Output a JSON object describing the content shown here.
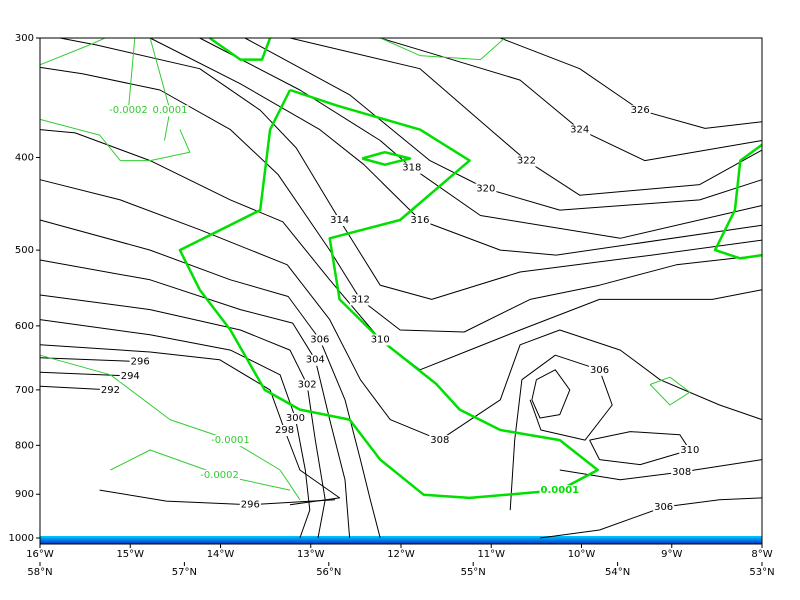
{
  "chart_data": {
    "type": "contour",
    "y_scale": "log",
    "xlim": [
      -16,
      -8
    ],
    "ylim": [
      1000,
      300
    ],
    "x2lim": [
      58,
      53
    ],
    "xticks": [
      {
        "value": -16,
        "label": "16°W"
      },
      {
        "value": -15,
        "label": "15°W"
      },
      {
        "value": -14,
        "label": "14°W"
      },
      {
        "value": -13,
        "label": "13°W"
      },
      {
        "value": -12,
        "label": "12°W"
      },
      {
        "value": -11,
        "label": "11°W"
      },
      {
        "value": -10,
        "label": "10°W"
      },
      {
        "value": -9,
        "label": "9°W"
      },
      {
        "value": -8,
        "label": "8°W"
      }
    ],
    "x2ticks": [
      {
        "value": 58,
        "label": "58°N"
      },
      {
        "value": 57,
        "label": "57°N"
      },
      {
        "value": 56,
        "label": "56°N"
      },
      {
        "value": 55,
        "label": "55°N"
      },
      {
        "value": 54,
        "label": "54°N"
      },
      {
        "value": 53,
        "label": "53°N"
      }
    ],
    "yticks": [
      300,
      400,
      500,
      600,
      700,
      800,
      900,
      1000
    ],
    "series": [
      {
        "level": 314,
        "color": "#000000",
        "width": 1,
        "x": [
          -15.78,
          -15.38,
          -14.23,
          -13.56,
          -13.16,
          -12.68,
          -12.23,
          -11.66,
          -10.68,
          -9.22,
          -8
        ],
        "y": [
          300,
          305,
          323,
          357,
          391,
          465,
          544,
          563,
          527,
          506,
          488
        ]
      },
      {
        "level": 316,
        "color": "#000000",
        "width": 1,
        "x": [
          -14.78,
          -13.78,
          -12.9,
          -12.41,
          -11.79,
          -10.9,
          -10.28,
          -8
        ],
        "y": [
          300,
          335,
          374,
          407,
          465,
          500,
          506,
          471
        ]
      },
      {
        "level": 318,
        "color": "#000000",
        "width": 1,
        "x": [
          -14.23,
          -13.12,
          -12.23,
          -11.88,
          -11.12,
          -9.57,
          -8
        ],
        "y": [
          300,
          340,
          384,
          410,
          460,
          486,
          449
        ]
      },
      {
        "level": 320,
        "color": "#000000",
        "width": 1,
        "x": [
          -13.73,
          -12.57,
          -11.68,
          -11.06,
          -10.24,
          -8.69,
          -8
        ],
        "y": [
          300,
          344,
          403,
          431,
          454,
          443,
          422
        ]
      },
      {
        "level": 322,
        "color": "#000000",
        "width": 1,
        "x": [
          -13.23,
          -11.79,
          -11.01,
          -10.61,
          -10.02,
          -8.69,
          -8
        ],
        "y": [
          300,
          323,
          374,
          403,
          438,
          427,
          393
        ]
      },
      {
        "level": 324,
        "color": "#000000",
        "width": 1,
        "x": [
          -12.23,
          -11.48,
          -10.68,
          -10.02,
          -9.3,
          -8
        ],
        "y": [
          300,
          315,
          332,
          374,
          403,
          384
        ]
      },
      {
        "level": 326,
        "color": "#000000",
        "width": 1,
        "x": [
          -10.9,
          -10.02,
          -9.35,
          -8.63,
          -8
        ],
        "y": [
          300,
          323,
          357,
          373,
          367
        ]
      },
      {
        "level": 312,
        "color": "#000000",
        "width": 1,
        "x": [
          -16,
          -15.53,
          -14.67,
          -13.89,
          -13.36,
          -12.79,
          -12.45,
          -12.01,
          -11.3,
          -10.57,
          -9.8,
          -8.95,
          -8
        ],
        "y": [
          322,
          327,
          340,
          374,
          417,
          500,
          563,
          606,
          609,
          563,
          544,
          518,
          506
        ]
      },
      {
        "level": 310,
        "color": "#000000",
        "width": 1,
        "x": [
          -16,
          -15.61,
          -14.78,
          -13.89,
          -13.31,
          -12.79,
          -12.23,
          -11.79,
          -11.24,
          -10.68,
          -9.8,
          -8.55,
          -8
        ],
        "y": [
          374,
          377,
          403,
          443,
          467,
          537,
          620,
          667,
          636,
          606,
          563,
          563,
          550
        ]
      },
      {
        "level": 308,
        "color": "#000000",
        "width": 1,
        "x": [
          -16,
          -15.11,
          -14.23,
          -13.26,
          -12.79,
          -12.45,
          -12.12,
          -11.57,
          -10.9,
          -10.68,
          -10.24,
          -9.57,
          -9.13,
          -8.47,
          -8
        ],
        "y": [
          422,
          443,
          476,
          518,
          591,
          683,
          752,
          790,
          717,
          628,
          606,
          636,
          683,
          726,
          752
        ]
      },
      {
        "level": 306,
        "color": "#000000",
        "width": 1,
        "x": [
          -16,
          -14.78,
          -13.89,
          -13.25,
          -12.9,
          -12.62,
          -12.45,
          -12.34,
          -12.23
        ],
        "y": [
          465,
          500,
          537,
          559,
          620,
          717,
          828,
          912,
          1000
        ]
      },
      {
        "level": 304,
        "color": "#000000",
        "width": 1,
        "x": [
          -16,
          -14.78,
          -13.78,
          -13.2,
          -12.95,
          -12.79,
          -12.62,
          -12.57
        ],
        "y": [
          512,
          537,
          577,
          596,
          651,
          752,
          869,
          1000
        ]
      },
      {
        "level": 302,
        "color": "#000000",
        "width": 1,
        "x": [
          -16,
          -14.78,
          -13.78,
          -13.23,
          -13.04,
          -12.95,
          -12.84,
          -12.92
        ],
        "y": [
          557,
          577,
          606,
          636,
          691,
          790,
          912,
          1000
        ]
      },
      {
        "level": 300,
        "color": "#000000",
        "width": 1,
        "x": [
          -16,
          -14.78,
          -13.89,
          -13.34,
          -13.17,
          -13.06,
          -13.01,
          -13.12
        ],
        "y": [
          591,
          613,
          636,
          675,
          749,
          849,
          935,
          1000
        ]
      },
      {
        "level": 298,
        "color": "#000000",
        "width": 1,
        "x": [
          -16,
          -14.78,
          -14.01,
          -13.45,
          -13.29,
          -13.12,
          -12.68,
          -13.23
        ],
        "y": [
          628,
          639,
          651,
          700,
          771,
          849,
          908,
          923
        ]
      },
      {
        "level": 296,
        "color": "#000000",
        "width": 1,
        "x": [
          -16,
          -14.89
        ],
        "y": [
          648,
          654
        ]
      },
      {
        "level": 294,
        "color": "#000000",
        "width": 1,
        "x": [
          -16,
          -15
        ],
        "y": [
          671,
          677
        ]
      },
      {
        "level": 292,
        "color": "#000000",
        "width": 1,
        "x": [
          -16,
          -15.22
        ],
        "y": [
          694,
          700
        ]
      },
      {
        "level": 296,
        "color": "#000000",
        "width": 1,
        "x": [
          -15.34,
          -14.6,
          -13.67,
          -12.73
        ],
        "y": [
          891,
          915,
          923,
          912
        ]
      },
      {
        "level": 306,
        "color": "#000000",
        "width": 1,
        "x": [
          -10.79,
          -10.74,
          -10.66,
          -10.29,
          -9.8,
          -9.66,
          -9.96,
          -10.45,
          -10.57
        ],
        "y": [
          935,
          790,
          683,
          644,
          667,
          726,
          790,
          771,
          717
        ]
      },
      {
        "color": "#000000",
        "width": 1,
        "x": [
          -10.5,
          -10.29,
          -10.13,
          -10.24,
          -10.46,
          -10.55,
          -10.5
        ],
        "y": [
          683,
          667,
          700,
          743,
          749,
          717,
          683
        ]
      },
      {
        "level": 308,
        "color": "#000000",
        "width": 1,
        "x": [
          -10.24,
          -9.57,
          -8.89,
          -8
        ],
        "y": [
          849,
          869,
          853,
          828
        ]
      },
      {
        "level": 310,
        "color": "#000000",
        "width": 1,
        "x": [
          -9.91,
          -9.46,
          -8.91,
          -8.8,
          -9.35,
          -9.8,
          -9.91
        ],
        "y": [
          790,
          774,
          780,
          809,
          838,
          828,
          790
        ]
      },
      {
        "level": 306,
        "color": "#000000",
        "width": 1,
        "x": [
          -10.46,
          -9.8,
          -9.09,
          -8.47,
          -8
        ],
        "y": [
          1000,
          981,
          928,
          912,
          908
        ]
      },
      {
        "level": 0.0001,
        "color": "#00e000",
        "width": 2.5,
        "x": [
          -13.23,
          -12.71,
          -11.79,
          -11.24,
          -12.01,
          -12.79,
          -12.68,
          -12.23,
          -11.61,
          -11.35,
          -10.9,
          -10.24,
          -9.82,
          -10.24,
          -11.24,
          -11.75,
          -12.23,
          -12.57,
          -13.12,
          -13.51,
          -13.89,
          -14.23,
          -14.45,
          -13.56,
          -13.45,
          -13.23
        ],
        "y": [
          340,
          353,
          374,
          403,
          465,
          486,
          563,
          620,
          690,
          734,
          771,
          790,
          849,
          891,
          908,
          901,
          828,
          752,
          734,
          700,
          606,
          550,
          500,
          454,
          374,
          340
        ]
      },
      {
        "color": "#00e000",
        "width": 2.5,
        "x": [
          -8,
          -8.24,
          -8.3,
          -8.52,
          -8.24,
          -8
        ],
        "y": [
          388,
          403,
          454,
          500,
          510,
          506
        ]
      },
      {
        "color": "#00e000",
        "width": 2.5,
        "x": [
          -12.43,
          -12.18,
          -11.9,
          -12.18,
          -12.43
        ],
        "y": [
          401,
          395,
          401,
          407,
          401
        ]
      },
      {
        "color": "#00e000",
        "width": 2.5,
        "x": [
          -14.12,
          -13.78,
          -13.54,
          -13.45
        ],
        "y": [
          300,
          316,
          316,
          300
        ]
      },
      {
        "level": -0.0001,
        "color": "#33cc33",
        "width": 1,
        "x": [
          -16,
          -15.22,
          -14.56,
          -13.89,
          -13.34,
          -13.12
        ],
        "y": [
          644,
          675,
          752,
          790,
          849,
          912
        ]
      },
      {
        "level": -0.0002,
        "color": "#33cc33",
        "width": 1,
        "x": [
          -15.22,
          -14.78,
          -14.01,
          -13.23
        ],
        "y": [
          849,
          809,
          859,
          891
        ]
      },
      {
        "level": -0.0002,
        "color": "#33cc33",
        "width": 1,
        "x": [
          -14.95,
          -15.02
        ],
        "y": [
          300,
          357
        ]
      },
      {
        "level": 0.0001,
        "color": "#33cc33",
        "width": 1,
        "x": [
          -14.78,
          -14.56,
          -14.62
        ],
        "y": [
          300,
          357,
          384
        ]
      },
      {
        "color": "#33cc33",
        "width": 1,
        "x": [
          -16,
          -15.45,
          -15.28
        ],
        "y": [
          320,
          305,
          300
        ]
      },
      {
        "color": "#33cc33",
        "width": 1,
        "x": [
          -12.23,
          -11.79,
          -11.12,
          -10.85
        ],
        "y": [
          300,
          313,
          316,
          300
        ]
      },
      {
        "color": "#33cc33",
        "width": 1,
        "x": [
          -16,
          -15.34,
          -15.11,
          -14.78,
          -14.34,
          -14.45
        ],
        "y": [
          365,
          379,
          403,
          403,
          395,
          374
        ]
      },
      {
        "color": "#33cc33",
        "width": 1,
        "x": [
          -9.24,
          -9.02,
          -8.8,
          -9.02,
          -9.24
        ],
        "y": [
          691,
          679,
          704,
          726,
          691
        ]
      }
    ]
  }
}
